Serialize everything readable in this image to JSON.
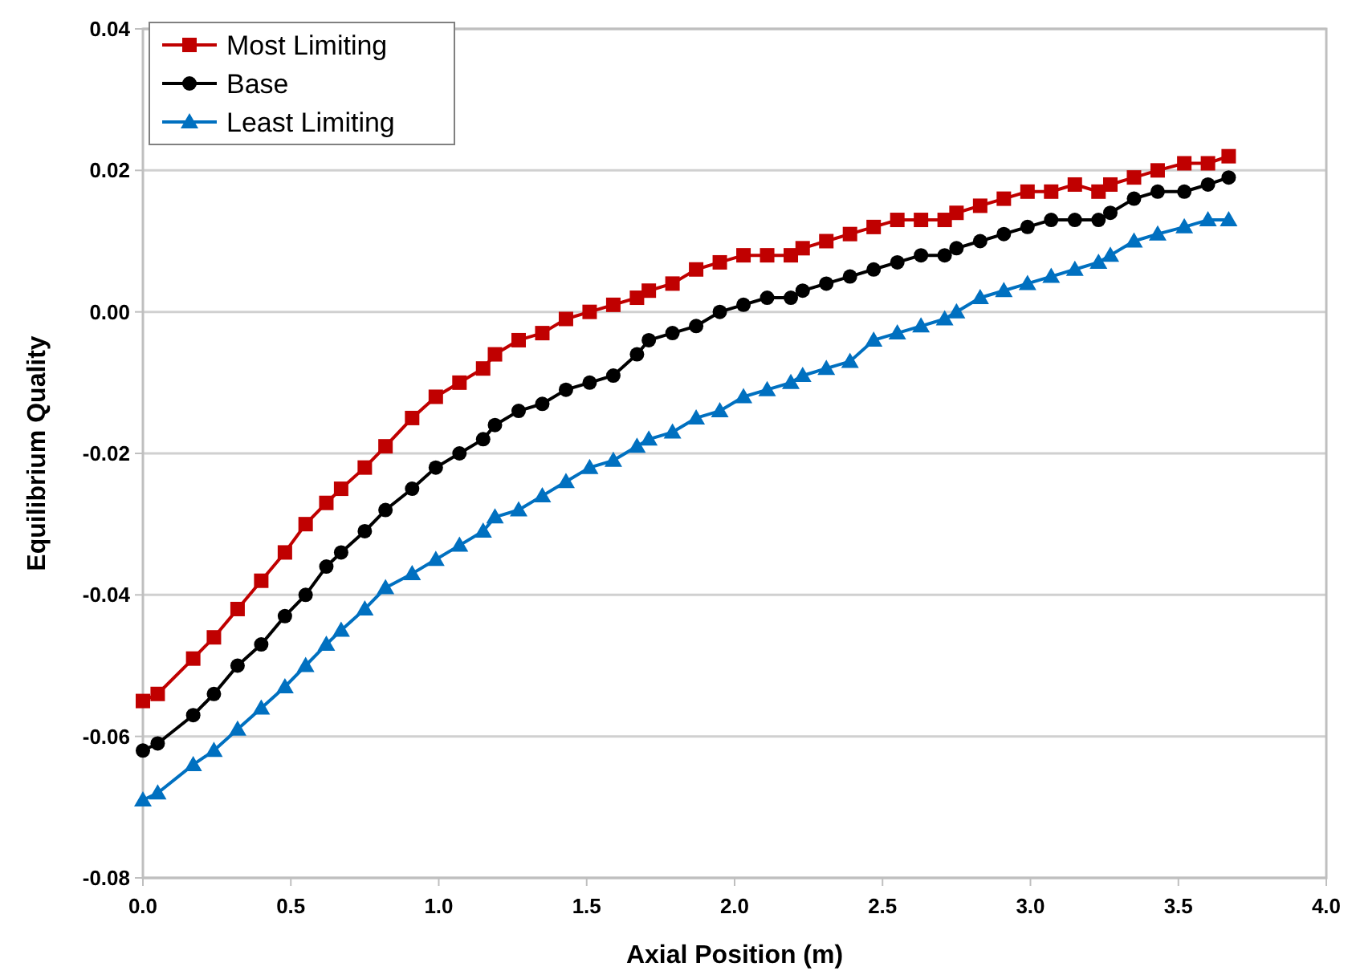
{
  "chart_data": {
    "type": "line",
    "xlabel": "Axial Position (m)",
    "ylabel": "Equilibrium Quality",
    "x": [
      0.0,
      0.05,
      0.17,
      0.24,
      0.32,
      0.4,
      0.48,
      0.55,
      0.62,
      0.67,
      0.75,
      0.82,
      0.91,
      0.99,
      1.07,
      1.15,
      1.19,
      1.27,
      1.35,
      1.43,
      1.51,
      1.59,
      1.67,
      1.71,
      1.79,
      1.87,
      1.95,
      2.03,
      2.11,
      2.19,
      2.23,
      2.31,
      2.39,
      2.47,
      2.55,
      2.63,
      2.71,
      2.75,
      2.83,
      2.91,
      2.99,
      3.07,
      3.15,
      3.23,
      3.27,
      3.35,
      3.43,
      3.52,
      3.6,
      3.67
    ],
    "series": [
      {
        "name": "Most Limiting",
        "color": "#c00000",
        "marker": "square",
        "values": [
          -0.055,
          -0.054,
          -0.049,
          -0.046,
          -0.042,
          -0.038,
          -0.034,
          -0.03,
          -0.027,
          -0.025,
          -0.022,
          -0.019,
          -0.015,
          -0.012,
          -0.01,
          -0.008,
          -0.006,
          -0.004,
          -0.003,
          -0.001,
          0.0,
          0.001,
          0.002,
          0.003,
          0.004,
          0.006,
          0.007,
          0.008,
          0.008,
          0.008,
          0.009,
          0.01,
          0.011,
          0.012,
          0.013,
          0.013,
          0.013,
          0.014,
          0.015,
          0.016,
          0.017,
          0.017,
          0.018,
          0.017,
          0.018,
          0.019,
          0.02,
          0.021,
          0.021,
          0.022
        ]
      },
      {
        "name": "Base",
        "color": "#000000",
        "marker": "circle",
        "values": [
          -0.062,
          -0.061,
          -0.057,
          -0.054,
          -0.05,
          -0.047,
          -0.043,
          -0.04,
          -0.036,
          -0.034,
          -0.031,
          -0.028,
          -0.025,
          -0.022,
          -0.02,
          -0.018,
          -0.016,
          -0.014,
          -0.013,
          -0.011,
          -0.01,
          -0.009,
          -0.006,
          -0.004,
          -0.003,
          -0.002,
          0.0,
          0.001,
          0.002,
          0.002,
          0.003,
          0.004,
          0.005,
          0.006,
          0.007,
          0.008,
          0.008,
          0.009,
          0.01,
          0.011,
          0.012,
          0.013,
          0.013,
          0.013,
          0.014,
          0.016,
          0.017,
          0.017,
          0.018,
          0.019
        ]
      },
      {
        "name": "Least Limiting",
        "color": "#0070c0",
        "marker": "triangle",
        "values": [
          -0.069,
          -0.068,
          -0.064,
          -0.062,
          -0.059,
          -0.056,
          -0.053,
          -0.05,
          -0.047,
          -0.045,
          -0.042,
          -0.039,
          -0.037,
          -0.035,
          -0.033,
          -0.031,
          -0.029,
          -0.028,
          -0.026,
          -0.024,
          -0.022,
          -0.021,
          -0.019,
          -0.018,
          -0.017,
          -0.015,
          -0.014,
          -0.012,
          -0.011,
          -0.01,
          -0.009,
          -0.008,
          -0.007,
          -0.004,
          -0.003,
          -0.002,
          -0.001,
          0.0,
          0.002,
          0.003,
          0.004,
          0.005,
          0.006,
          0.007,
          0.008,
          0.01,
          0.011,
          0.012,
          0.013,
          0.013
        ]
      }
    ],
    "xlim": [
      0,
      4
    ],
    "xticks": [
      {
        "value": 0,
        "label": "0.0"
      },
      {
        "value": 0.5,
        "label": "0.5"
      },
      {
        "value": 1,
        "label": "1.0"
      },
      {
        "value": 1.5,
        "label": "1.5"
      },
      {
        "value": 2,
        "label": "2.0"
      },
      {
        "value": 2.5,
        "label": "2.5"
      },
      {
        "value": 3,
        "label": "3.0"
      },
      {
        "value": 3.5,
        "label": "3.5"
      },
      {
        "value": 4,
        "label": "4.0"
      }
    ],
    "ylim": [
      -0.08,
      0.04
    ],
    "yticks": [
      {
        "value": -0.08,
        "label": "-0.08"
      },
      {
        "value": -0.06,
        "label": "-0.06"
      },
      {
        "value": -0.04,
        "label": "-0.04"
      },
      {
        "value": -0.02,
        "label": "-0.02"
      },
      {
        "value": 0,
        "label": "0.00"
      },
      {
        "value": 0.02,
        "label": "0.02"
      },
      {
        "value": 0.04,
        "label": "0.04"
      }
    ],
    "grid": "y",
    "legend": "top left",
    "line_style": "solid"
  }
}
